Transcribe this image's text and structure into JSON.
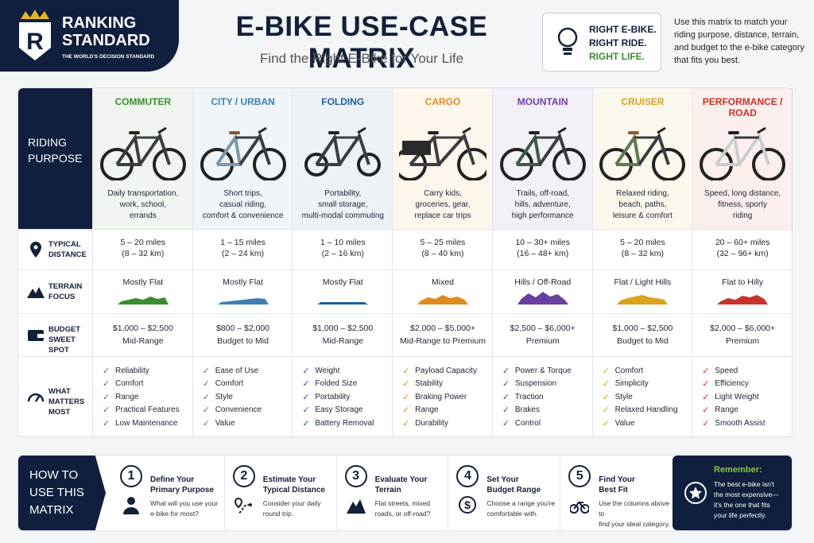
{
  "brand": {
    "name_lines": [
      "RANKING",
      "STANDARD"
    ],
    "tagline": "THE WORLD'S DECISION STANDARD"
  },
  "header": {
    "title": "E-BIKE USE-CASE MATRIX",
    "subtitle": "Find the Right E-Bike for Your Life"
  },
  "badge": {
    "lines": [
      "RIGHT E-BIKE.",
      "RIGHT RIDE.",
      "RIGHT LIFE."
    ]
  },
  "intro": "Use this matrix to match your riding purpose, distance, terrain, and budget to the e-bike category that fits you best.",
  "matrix": {
    "row_labels": [
      [
        "RIDING",
        "PURPOSE"
      ],
      [
        "TYPICAL",
        "DISTANCE"
      ],
      [
        "TERRAIN",
        "FOCUS"
      ],
      [
        "BUDGET",
        "SWEET SPOT"
      ],
      [
        "WHAT",
        "MATTERS MOST"
      ]
    ],
    "columns": [
      {
        "name": "COMMUTER",
        "color": "#3c8c2f",
        "purpose_lines": [
          "Daily transportation,",
          "work, school,",
          "errands"
        ],
        "distance_lines": [
          "5 – 20 miles",
          "(8 – 32 km)"
        ],
        "terrain": "Mostly Flat",
        "budget_lines": [
          "$1,000 – $2,500",
          "Mid-Range"
        ],
        "matters": [
          "Reliability",
          "Comfort",
          "Range",
          "Practical Features",
          "Low Maintenance"
        ]
      },
      {
        "name": "CITY / URBAN",
        "color": "#3b7fb5",
        "purpose_lines": [
          "Short trips,",
          "casual riding,",
          "comfort & convenience"
        ],
        "distance_lines": [
          "1 – 15 miles",
          "(2 – 24 km)"
        ],
        "terrain": "Mostly Flat",
        "budget_lines": [
          "$800 – $2,000",
          "Budget to Mid"
        ],
        "matters": [
          "Ease of Use",
          "Comfort",
          "Style",
          "Convenience",
          "Value"
        ]
      },
      {
        "name": "FOLDING",
        "color": "#1f5d9e",
        "purpose_lines": [
          "Portability,",
          "small storage,",
          "multi-modal commuting"
        ],
        "distance_lines": [
          "1 – 10 miles",
          "(2 – 16 km)"
        ],
        "terrain": "Mostly Flat",
        "budget_lines": [
          "$1,000 – $2,500",
          "Mid-Range"
        ],
        "matters": [
          "Weight",
          "Folded Size",
          "Portability",
          "Easy Storage",
          "Battery Removal"
        ]
      },
      {
        "name": "CARGO",
        "color": "#e08a1e",
        "purpose_lines": [
          "Carry kids,",
          "groceries, gear,",
          "replace car trips"
        ],
        "distance_lines": [
          "5 – 25 miles",
          "(8 – 40 km)"
        ],
        "terrain": "Mixed",
        "budget_lines": [
          "$2,000 – $5,000+",
          "Mid-Range to Premium"
        ],
        "matters": [
          "Payload Capacity",
          "Stability",
          "Braking Power",
          "Range",
          "Durability"
        ]
      },
      {
        "name": "MOUNTAIN",
        "color": "#6b3fa0",
        "purpose_lines": [
          "Trails, off-road,",
          "hills, adventure,",
          "high performance"
        ],
        "distance_lines": [
          "10 – 30+ miles",
          "(16 – 48+ km)"
        ],
        "terrain": "Hills / Off-Road",
        "budget_lines": [
          "$2,500 – $6,000+",
          "Premium"
        ],
        "matters": [
          "Power & Torque",
          "Suspension",
          "Traction",
          "Brakes",
          "Control"
        ]
      },
      {
        "name": "CRUISER",
        "color": "#d9a21b",
        "purpose_lines": [
          "Relaxed riding,",
          "beach, paths,",
          "leisure & comfort"
        ],
        "distance_lines": [
          "5 – 20 miles",
          "(8 – 32 km)"
        ],
        "terrain": "Flat / Light Hills",
        "budget_lines": [
          "$1,000 – $2,500",
          "Budget to Mid"
        ],
        "matters": [
          "Comfort",
          "Simplicity",
          "Style",
          "Relaxed Handling",
          "Value"
        ]
      },
      {
        "name": "PERFORMANCE / ROAD",
        "color": "#c8322b",
        "purpose_lines": [
          "Speed, long distance,",
          "fitness, sporty",
          "riding"
        ],
        "distance_lines": [
          "20 – 60+ miles",
          "(32 – 96+ km)"
        ],
        "terrain": "Flat to Hilly",
        "budget_lines": [
          "$2,000 – $6,000+",
          "Premium"
        ],
        "matters": [
          "Speed",
          "Efficiency",
          "Light Weight",
          "Range",
          "Smooth Assist"
        ]
      }
    ]
  },
  "how_to": {
    "title_lines": [
      "HOW TO",
      "USE THIS",
      "MATRIX"
    ],
    "steps": [
      {
        "number": "1",
        "title_lines": [
          "Define Your",
          "Primary Purpose"
        ],
        "text_lines": [
          "What will you use your",
          "e-bike for most?"
        ]
      },
      {
        "number": "2",
        "title_lines": [
          "Estimate Your",
          "Typical Distance"
        ],
        "text_lines": [
          "Consider your daily",
          "round trip."
        ]
      },
      {
        "number": "3",
        "title_lines": [
          "Evaluate Your",
          "Terrain"
        ],
        "text_lines": [
          "Flat streets, mixed",
          "roads, or off-road?"
        ]
      },
      {
        "number": "4",
        "title_lines": [
          "Set Your",
          "Budget Range"
        ],
        "text_lines": [
          "Choose a range you're",
          "comfortable with."
        ]
      },
      {
        "number": "5",
        "title_lines": [
          "Find Your",
          "Best Fit"
        ],
        "text_lines": [
          "Use the columns above to",
          "find your ideal category."
        ]
      }
    ]
  },
  "remember": {
    "title": "Remember:",
    "text_lines": [
      "The best e-bike isn't",
      "the most expensive—",
      "it's the one that fits",
      "your life perfectly."
    ]
  }
}
